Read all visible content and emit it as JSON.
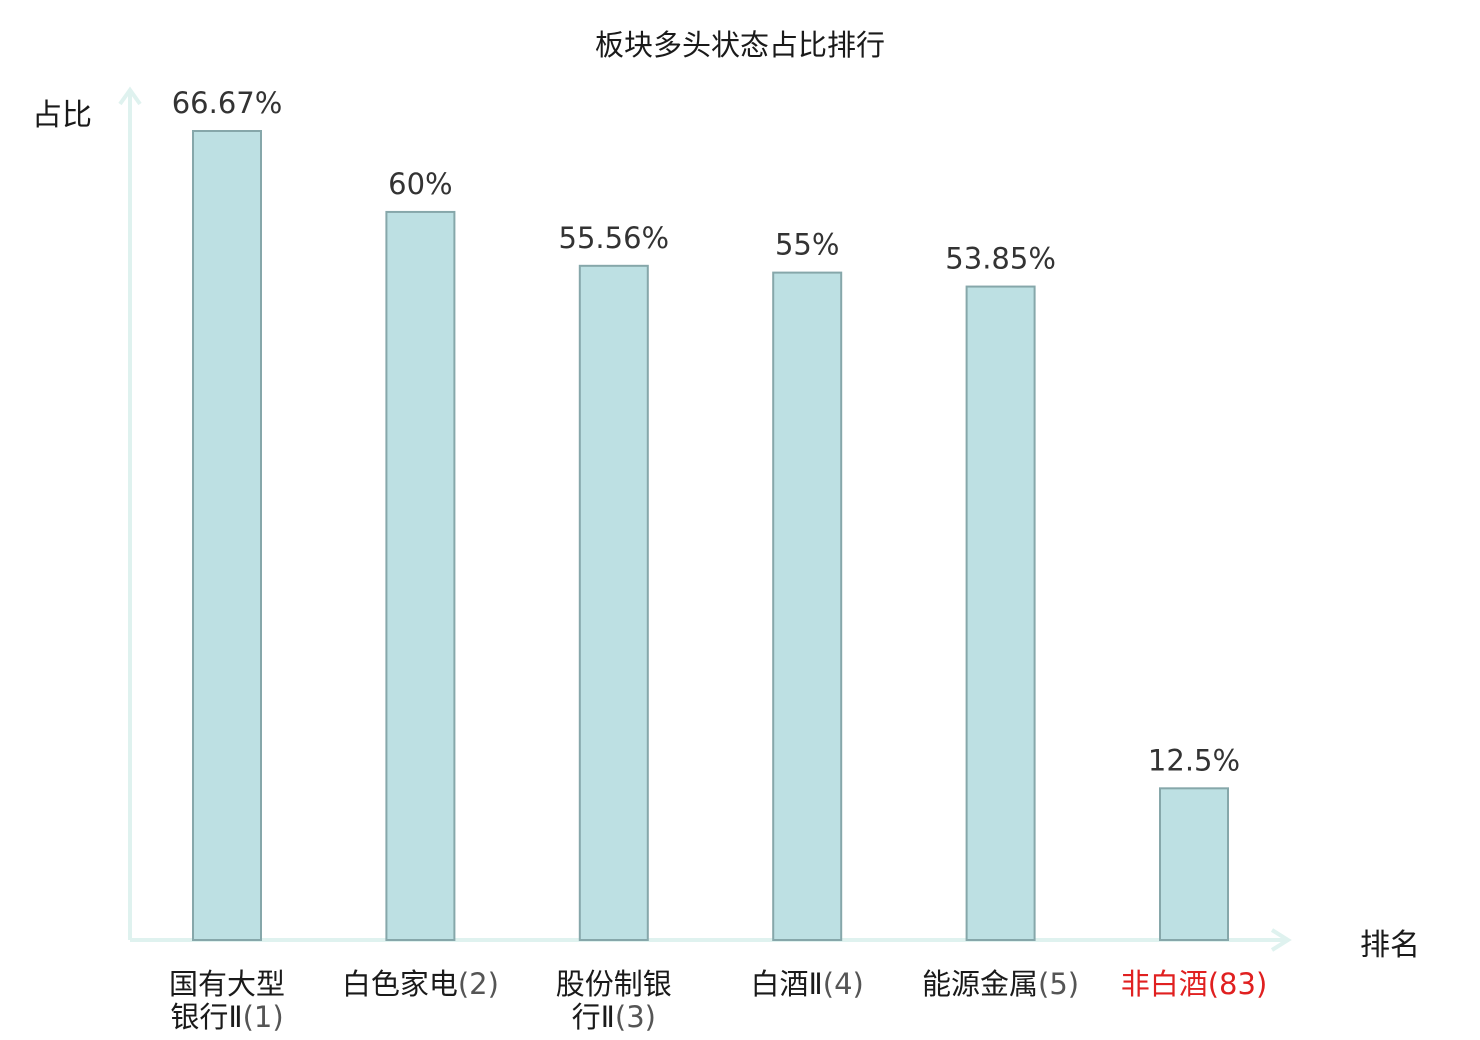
{
  "chart_data": {
    "type": "bar",
    "title": "板块多头状态占比排行",
    "ylabel": "占比",
    "xlabel": "排名",
    "ylim": [
      0,
      70
    ],
    "grid": false,
    "categories": [
      {
        "lines": [
          {
            "name": "国有大型",
            "rank": ""
          },
          {
            "name": "银行Ⅱ",
            "rank": "(1)"
          }
        ],
        "highlight": false
      },
      {
        "lines": [
          {
            "name": "白色家电",
            "rank": "(2)"
          }
        ],
        "highlight": false
      },
      {
        "lines": [
          {
            "name": "股份制银",
            "rank": ""
          },
          {
            "name": "行Ⅱ",
            "rank": "(3)"
          }
        ],
        "highlight": false
      },
      {
        "lines": [
          {
            "name": "白酒Ⅱ",
            "rank": "(4)"
          }
        ],
        "highlight": false
      },
      {
        "lines": [
          {
            "name": "能源金属",
            "rank": "(5)"
          }
        ],
        "highlight": false
      },
      {
        "lines": [
          {
            "name": "非白酒",
            "rank": "(83)"
          }
        ],
        "highlight": true
      }
    ],
    "values": [
      66.67,
      60,
      55.56,
      55,
      53.85,
      12.5
    ],
    "value_labels": [
      "66.67%",
      "60%",
      "55.56%",
      "55%",
      "53.85%",
      "12.5%"
    ]
  },
  "colors": {
    "bar_fill": "#bde0e3",
    "bar_stroke": "#86a7aa",
    "axis": "#dff2ef",
    "label_text": "#1a1a1a",
    "rank_text": "#555555",
    "value_text": "#333333",
    "highlight": "#e02020"
  }
}
